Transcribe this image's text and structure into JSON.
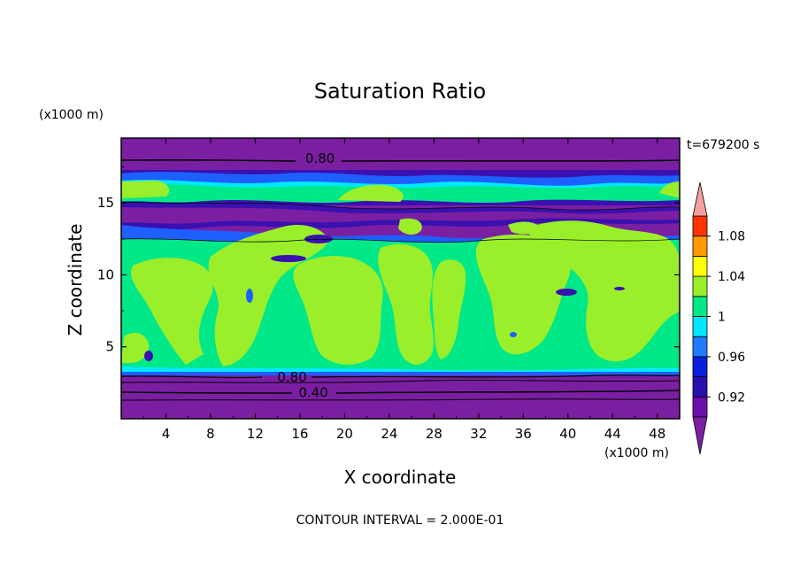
{
  "chart_data": {
    "type": "heatmap",
    "title": "Saturation Ratio",
    "xlabel": "X coordinate",
    "ylabel": "Z coordinate",
    "x_unit": "(x1000 m)",
    "y_unit": "(x1000 m)",
    "time_label": "t=679200 s",
    "footer": "CONTOUR INTERVAL = 2.000E-01",
    "xlim": [
      0,
      50
    ],
    "ylim": [
      0,
      19.5
    ],
    "x_ticks": [
      4,
      8,
      12,
      16,
      20,
      24,
      28,
      32,
      36,
      40,
      44,
      48
    ],
    "y_ticks": [
      5,
      10,
      15
    ],
    "contour_labels": [
      {
        "text": "0.80",
        "x": 17.8,
        "z": 18.1
      },
      {
        "text": "0.80",
        "x": 15.3,
        "z": 2.9
      },
      {
        "text": "0.40",
        "x": 17.2,
        "z": 1.8
      }
    ],
    "colorbar": {
      "levels": [
        0.9,
        0.92,
        0.94,
        0.96,
        0.98,
        1.0,
        1.02,
        1.04,
        1.06,
        1.08,
        1.1
      ],
      "colors": [
        "#6a0dad",
        "#2a0fb0",
        "#0a1fdc",
        "#1e7bff",
        "#00e8ff",
        "#00e888",
        "#9aee2a",
        "#ffff00",
        "#ff9a00",
        "#ff3300",
        "#f08080"
      ],
      "under_color": "#7b1fa2",
      "over_color": "#f4a0a0",
      "tick_labels": [
        "1.08",
        "1.04",
        "1",
        "0.96",
        "0.92"
      ],
      "tick_values": [
        1.08,
        1.04,
        1.0,
        0.96,
        0.92
      ]
    }
  }
}
